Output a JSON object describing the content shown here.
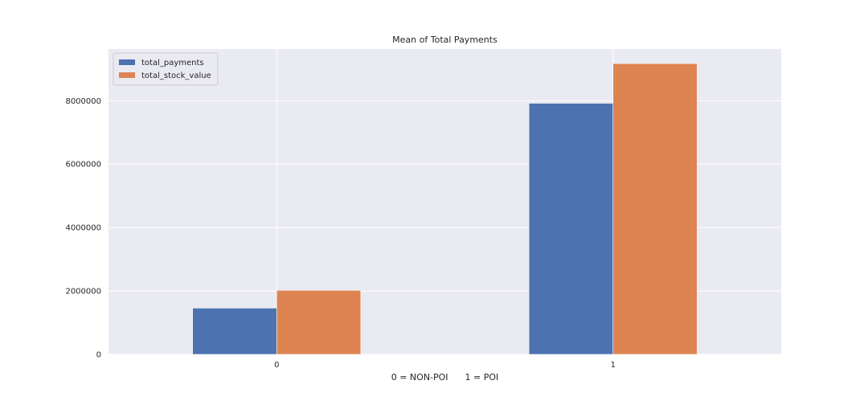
{
  "chart_data": {
    "type": "bar",
    "title": "Mean of Total Payments",
    "xlabel": "0 = NON-POI      1 = POI",
    "ylabel": "",
    "categories": [
      "0",
      "1"
    ],
    "series": [
      {
        "name": "total_payments",
        "values": [
          1460000,
          7920000
        ]
      },
      {
        "name": "total_stock_value",
        "values": [
          2020000,
          9170000
        ]
      }
    ],
    "yticks": [
      0,
      2000000,
      4000000,
      6000000,
      8000000
    ],
    "ytick_labels": [
      "0",
      "2000000",
      "4000000",
      "6000000",
      "8000000"
    ],
    "ylim": [
      0,
      9630000
    ],
    "grid": true,
    "legend_position": "top-left"
  },
  "colors": {
    "plot_background": "#eaeaf2",
    "grid": "#ffffff",
    "series": [
      "#4c72b0",
      "#dd8452"
    ]
  }
}
